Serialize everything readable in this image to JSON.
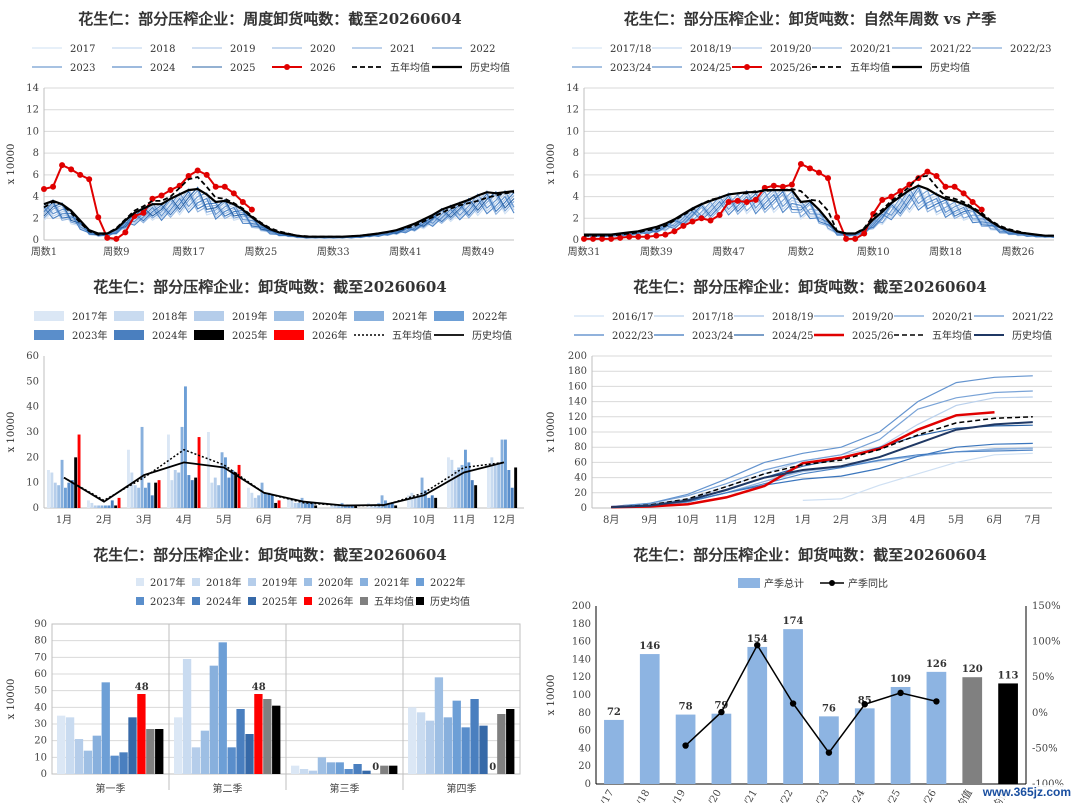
{
  "watermark": "www.365jz.com",
  "chart_data": [
    {
      "id": "p1",
      "type": "line",
      "title": "花生仁：部分压榨企业：周度卸货吨数：截至20260604",
      "ylabel": "x 10000",
      "ylim": [
        0,
        14
      ],
      "yticks": [
        0,
        2,
        4,
        6,
        8,
        10,
        12,
        14
      ],
      "xtick_labels": [
        "周数1",
        "周数9",
        "周数17",
        "周数25",
        "周数33",
        "周数41",
        "周数49"
      ],
      "x_count": 53,
      "legend": [
        "2017",
        "2018",
        "2019",
        "2020",
        "2021",
        "2022",
        "2023",
        "2024",
        "2025",
        "2026",
        "五年均值",
        "历史均值"
      ],
      "series": [
        {
          "name": "2026",
          "values": [
            4.7,
            4.9,
            6.9,
            6.5,
            6.0,
            5.6,
            2.1,
            0.2,
            0.1,
            0.7,
            2.2,
            2.5,
            3.8,
            4.1,
            4.6,
            5.0,
            5.9,
            6.4,
            6.0,
            4.9,
            4.9,
            4.3,
            3.5,
            2.8
          ]
        },
        {
          "name": "五年均值",
          "values": [
            3.0,
            3.5,
            3.3,
            2.5,
            1.6,
            0.8,
            0.5,
            0.6,
            1.1,
            1.9,
            2.7,
            3.1,
            3.6,
            3.6,
            4.0,
            4.8,
            5.6,
            5.8,
            4.9,
            3.9,
            3.8,
            3.4,
            2.9,
            2.2,
            1.6,
            1.1,
            0.8,
            0.6,
            0.4,
            0.35,
            0.3,
            0.3,
            0.3,
            0.3,
            0.35,
            0.4,
            0.5,
            0.6,
            0.7,
            0.9,
            1.1,
            1.3,
            1.7,
            2.1,
            2.5,
            2.9,
            3.2,
            3.4,
            3.6,
            3.9,
            4.1,
            4.3,
            4.4
          ]
        },
        {
          "name": "历史均值",
          "values": [
            3.3,
            3.6,
            3.3,
            2.7,
            1.8,
            0.9,
            0.6,
            0.6,
            1.0,
            1.8,
            2.5,
            2.9,
            3.3,
            3.3,
            3.8,
            4.2,
            4.6,
            4.7,
            4.2,
            3.5,
            3.6,
            3.3,
            2.8,
            2.1,
            1.5,
            1.0,
            0.7,
            0.55,
            0.4,
            0.3,
            0.3,
            0.3,
            0.3,
            0.3,
            0.35,
            0.4,
            0.5,
            0.6,
            0.75,
            0.9,
            1.2,
            1.5,
            1.9,
            2.3,
            2.8,
            3.1,
            3.4,
            3.7,
            4.1,
            4.4,
            4.3,
            4.4,
            4.5
          ]
        }
      ]
    },
    {
      "id": "p2",
      "type": "line",
      "title": "花生仁：部分压榨企业：卸货吨数：自然年周数 vs 产季",
      "ylabel": "x 10000",
      "ylim": [
        0,
        14
      ],
      "yticks": [
        0,
        2,
        4,
        6,
        8,
        10,
        12,
        14
      ],
      "xtick_labels": [
        "周数31",
        "周数39",
        "周数47",
        "周数2",
        "周数10",
        "周数18",
        "周数26"
      ],
      "x_count": 53,
      "legend": [
        "2017/18",
        "2018/19",
        "2019/20",
        "2020/21",
        "2021/22",
        "2022/23",
        "2023/24",
        "2024/25",
        "2025/26",
        "五年均值",
        "历史均值"
      ],
      "series": [
        {
          "name": "2025/26",
          "values": [
            0.1,
            0.1,
            0.1,
            0.1,
            0.2,
            0.3,
            0.3,
            0.3,
            0.4,
            0.5,
            0.8,
            1.3,
            1.7,
            2.0,
            1.8,
            2.3,
            3.5,
            3.6,
            3.5,
            3.7,
            4.8,
            5.0,
            4.9,
            5.1,
            7.0,
            6.6,
            6.2,
            5.7,
            2.1,
            0.1,
            0.1,
            0.6,
            2.4,
            3.7,
            4.0,
            4.5,
            5.1,
            5.7,
            6.3,
            5.9,
            4.9,
            4.9,
            4.3,
            3.5,
            2.8
          ]
        },
        {
          "name": "五年均值",
          "values": [
            0.4,
            0.4,
            0.4,
            0.4,
            0.5,
            0.6,
            0.7,
            0.9,
            1.0,
            1.3,
            1.8,
            2.3,
            2.8,
            3.3,
            3.7,
            3.9,
            4.2,
            4.3,
            4.3,
            4.5,
            4.5,
            4.6,
            4.6,
            4.7,
            4.5,
            3.7,
            3.6,
            2.7,
            0.8,
            0.6,
            0.6,
            1.1,
            2.2,
            2.8,
            3.6,
            4.2,
            4.9,
            5.8,
            5.9,
            4.9,
            4.0,
            3.8,
            3.5,
            3.0,
            2.5,
            1.8,
            1.3,
            1.0,
            0.8,
            0.6,
            0.5,
            0.4,
            0.4
          ]
        },
        {
          "name": "历史均值",
          "values": [
            0.5,
            0.5,
            0.5,
            0.5,
            0.6,
            0.7,
            0.8,
            1.0,
            1.2,
            1.5,
            1.9,
            2.4,
            2.9,
            3.3,
            3.6,
            3.9,
            4.2,
            4.3,
            4.4,
            4.4,
            4.6,
            4.6,
            4.6,
            4.6,
            3.5,
            3.6,
            2.8,
            1.8,
            0.8,
            0.6,
            0.6,
            1.0,
            1.9,
            2.6,
            3.4,
            4.0,
            4.6,
            5.0,
            4.7,
            4.2,
            3.8,
            3.6,
            3.3,
            2.9,
            2.3,
            1.7,
            1.2,
            0.9,
            0.7,
            0.6,
            0.5,
            0.4,
            0.4
          ]
        }
      ]
    },
    {
      "id": "p3",
      "type": "bar",
      "title": "花生仁：部分压榨企业：卸货吨数：截至20260604",
      "ylabel": "x 10000",
      "ylim": [
        0,
        60
      ],
      "yticks": [
        0,
        10,
        20,
        30,
        40,
        50,
        60
      ],
      "categories": [
        "1月",
        "2月",
        "3月",
        "4月",
        "5月",
        "6月",
        "7月",
        "8月",
        "9月",
        "10月",
        "11月",
        "12月"
      ],
      "legend": [
        "2017年",
        "2018年",
        "2019年",
        "2020年",
        "2021年",
        "2022年",
        "2023年",
        "2024年",
        "2025年",
        "2026年",
        "五年均值",
        "历史均值"
      ],
      "series": [
        {
          "name": "2017年",
          "values": [
            15,
            3,
            23,
            29,
            30,
            8,
            4,
            0,
            2,
            5,
            20,
            17
          ]
        },
        {
          "name": "2018年",
          "values": [
            14,
            2,
            14,
            11,
            10,
            6,
            3,
            1,
            1,
            6,
            19,
            20
          ]
        },
        {
          "name": "2019年",
          "values": [
            10,
            1,
            9,
            15,
            12,
            4,
            2,
            1,
            1,
            4,
            15,
            17
          ]
        },
        {
          "name": "2020年",
          "values": [
            9,
            1,
            8,
            14,
            9,
            5,
            2,
            1,
            2,
            5,
            16,
            18
          ]
        },
        {
          "name": "2021年",
          "values": [
            19,
            1,
            32,
            32,
            22,
            10,
            4,
            2,
            5,
            12,
            17,
            27
          ]
        },
        {
          "name": "2022年",
          "values": [
            8,
            1,
            8,
            48,
            20,
            6,
            2,
            1,
            3,
            7,
            23,
            27
          ]
        },
        {
          "name": "2023年",
          "values": [
            10,
            1,
            10,
            13,
            12,
            6,
            2,
            1,
            2,
            4,
            18,
            15
          ]
        },
        {
          "name": "2024年",
          "values": [
            11,
            3,
            5,
            11,
            15,
            5,
            2,
            1,
            2,
            5,
            11,
            8
          ]
        },
        {
          "name": "2025年",
          "values": [
            20,
            1,
            10,
            12,
            14,
            2,
            1,
            1,
            1,
            4,
            9,
            16
          ]
        },
        {
          "name": "2026年",
          "values": [
            29,
            4,
            11,
            28,
            17,
            3,
            null,
            null,
            null,
            null,
            null,
            null
          ]
        }
      ],
      "lines": [
        {
          "name": "五年均值",
          "values": [
            12,
            3,
            12,
            23,
            17,
            6,
            2,
            1,
            1,
            6,
            16,
            18
          ]
        },
        {
          "name": "历史均值",
          "values": [
            12,
            2.5,
            13,
            18,
            16,
            6,
            2.5,
            1,
            1.2,
            5,
            14,
            18
          ]
        }
      ]
    },
    {
      "id": "p4",
      "type": "line",
      "title": "花生仁：部分压榨企业：卸货吨数：截至20260604",
      "ylabel": "x 10000",
      "ylim": [
        0,
        200
      ],
      "yticks": [
        0,
        20,
        40,
        60,
        80,
        100,
        120,
        140,
        160,
        180,
        200
      ],
      "xtick_labels": [
        "8月",
        "9月",
        "10月",
        "11月",
        "12月",
        "1月",
        "2月",
        "3月",
        "4月",
        "5月",
        "6月",
        "7月"
      ],
      "legend": [
        "2016/17",
        "2017/18",
        "2018/19",
        "2019/20",
        "2020/21",
        "2021/22",
        "2022/23",
        "2023/24",
        "2024/25",
        "2025/26",
        "五年均值",
        "历史均值"
      ],
      "series": [
        {
          "name": "2016/17",
          "values": [
            null,
            null,
            null,
            null,
            null,
            10,
            12,
            30,
            45,
            60,
            70,
            72
          ]
        },
        {
          "name": "2017/18",
          "values": [
            2,
            5,
            12,
            28,
            45,
            62,
            70,
            80,
            110,
            135,
            145,
            146
          ]
        },
        {
          "name": "2018/19",
          "values": [
            1,
            3,
            8,
            20,
            35,
            48,
            54,
            62,
            68,
            74,
            77,
            78
          ]
        },
        {
          "name": "2019/20",
          "values": [
            1,
            3,
            8,
            20,
            35,
            50,
            55,
            63,
            68,
            74,
            78,
            79
          ]
        },
        {
          "name": "2020/21",
          "values": [
            2,
            6,
            16,
            32,
            50,
            62,
            70,
            90,
            130,
            145,
            152,
            154
          ]
        },
        {
          "name": "2021/22",
          "values": [
            2,
            6,
            18,
            38,
            60,
            72,
            80,
            100,
            140,
            165,
            172,
            174
          ]
        },
        {
          "name": "2022/23",
          "values": [
            1,
            3,
            8,
            20,
            32,
            45,
            53,
            63,
            70,
            74,
            75,
            76
          ]
        },
        {
          "name": "2023/24",
          "values": [
            1,
            3,
            9,
            20,
            30,
            38,
            42,
            52,
            68,
            80,
            84,
            85
          ]
        },
        {
          "name": "2024/25",
          "values": [
            1,
            4,
            10,
            23,
            40,
            55,
            65,
            80,
            95,
            105,
            108,
            109
          ]
        },
        {
          "name": "2025/26",
          "values": [
            1,
            2,
            5,
            14,
            29,
            59,
            66,
            78,
            103,
            122,
            126,
            null
          ]
        }
      ],
      "lines": [
        {
          "name": "五年均值",
          "values": [
            1,
            4,
            12,
            28,
            45,
            57,
            63,
            77,
            96,
            112,
            118,
            120
          ]
        },
        {
          "name": "历史均值",
          "values": [
            1,
            3,
            10,
            24,
            40,
            50,
            55,
            67,
            85,
            103,
            110,
            113
          ]
        }
      ]
    },
    {
      "id": "p5",
      "type": "bar",
      "title": "花生仁：部分压榨企业：卸货吨数：截至20260604",
      "ylabel": "x 10000",
      "ylim": [
        0,
        90
      ],
      "yticks": [
        0,
        10,
        20,
        30,
        40,
        50,
        60,
        70,
        80,
        90
      ],
      "categories": [
        "第一季",
        "第二季",
        "第三季",
        "第四季"
      ],
      "legend": [
        "2017年",
        "2018年",
        "2019年",
        "2020年",
        "2021年",
        "2022年",
        "2023年",
        "2024年",
        "2025年",
        "2026年",
        "五年均值",
        "历史均值"
      ],
      "series": [
        {
          "name": "2017年",
          "values": [
            35,
            34,
            5,
            40
          ]
        },
        {
          "name": "2018年",
          "values": [
            34,
            69,
            3,
            37
          ]
        },
        {
          "name": "2019年",
          "values": [
            21,
            16,
            2,
            32
          ]
        },
        {
          "name": "2020年",
          "values": [
            14,
            26,
            10,
            58
          ]
        },
        {
          "name": "2021年",
          "values": [
            23,
            65,
            7,
            34
          ]
        },
        {
          "name": "2022年",
          "values": [
            55,
            79,
            7,
            44
          ]
        },
        {
          "name": "2023年",
          "values": [
            11,
            16,
            3,
            28
          ]
        },
        {
          "name": "2024年",
          "values": [
            13,
            39,
            6,
            45
          ]
        },
        {
          "name": "2025年",
          "values": [
            34,
            24,
            2,
            29
          ]
        },
        {
          "name": "2026年",
          "values": [
            48,
            48,
            0,
            0
          ]
        },
        {
          "name": "五年均值",
          "values": [
            27,
            45,
            5,
            36
          ]
        },
        {
          "name": "历史均值",
          "values": [
            27,
            41,
            5,
            39
          ]
        }
      ],
      "data_labels": [
        {
          "series": "2026年",
          "category": "第一季",
          "text": "48"
        },
        {
          "series": "2026年",
          "category": "第二季",
          "text": "48"
        },
        {
          "series": "2026年",
          "category": "第三季",
          "text": "0"
        },
        {
          "series": "2026年",
          "category": "第四季",
          "text": "0"
        }
      ]
    },
    {
      "id": "p6",
      "type": "bar",
      "title": "花生仁：部分压榨企业：卸货吨数：截至20260604",
      "ylabel": "x 10000",
      "ylim": [
        0,
        200
      ],
      "yticks": [
        0,
        20,
        40,
        60,
        80,
        100,
        120,
        140,
        160,
        180,
        200
      ],
      "y2lim": [
        -100,
        150
      ],
      "y2ticks": [
        "-100%",
        "-50%",
        "0%",
        "50%",
        "100%",
        "150%"
      ],
      "categories": [
        "2016/17",
        "2017/18",
        "2018/19",
        "2019/20",
        "2020/21",
        "2021/22",
        "2022/23",
        "2023/24",
        "2024/25",
        "2025/26",
        "五年均值",
        "历史均值"
      ],
      "legend": [
        "产季总计",
        "产季同比"
      ],
      "values": [
        72,
        146,
        78,
        79,
        154,
        174,
        76,
        85,
        109,
        126,
        120,
        113
      ],
      "value_labels": [
        "72",
        "146",
        "78",
        "79",
        "154",
        "174",
        "76",
        "85",
        "109",
        "126",
        "120",
        "113"
      ],
      "yoy": [
        null,
        null,
        -46,
        1,
        95,
        13,
        -56,
        12,
        28,
        16,
        null,
        null
      ]
    }
  ]
}
